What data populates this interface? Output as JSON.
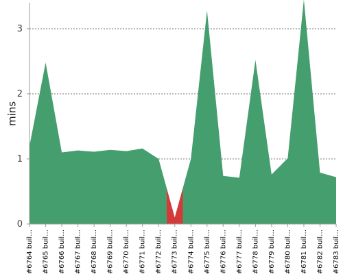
{
  "chart_data": {
    "type": "area",
    "ylabel": "mins",
    "ylim": [
      0,
      3.4
    ],
    "yticks": [
      0,
      1,
      2,
      3
    ],
    "grid": true,
    "colors": {
      "success": "#449e6d",
      "failure": "#d33a3a",
      "grid": "#777777",
      "axis": "#999999"
    },
    "categories": [
      "#6764 buil…",
      "#6765 buil…",
      "#6766 buil…",
      "#6767 buil…",
      "#6768 buil…",
      "#6769 buil…",
      "#6770 buil…",
      "#6771 buil…",
      "#6772 buil…",
      "#6773 buil…",
      "#6774 buil…",
      "#6775 buil…",
      "#6776 buil…",
      "#6777 buil…",
      "#6778 buil…",
      "#6779 buil…",
      "#6780 buil…",
      "#6781 buil…",
      "#6782 buil…",
      "#6783 buil…"
    ],
    "values": [
      1.2,
      2.48,
      1.1,
      1.13,
      1.11,
      1.14,
      1.12,
      1.16,
      1.0,
      0.1,
      1.0,
      3.28,
      0.74,
      0.71,
      2.52,
      0.76,
      1.01,
      3.45,
      0.79,
      0.72
    ],
    "status": [
      "success",
      "success",
      "success",
      "success",
      "success",
      "success",
      "success",
      "success",
      "success",
      "failure",
      "success",
      "success",
      "success",
      "success",
      "success",
      "success",
      "success",
      "success",
      "success",
      "success"
    ]
  }
}
